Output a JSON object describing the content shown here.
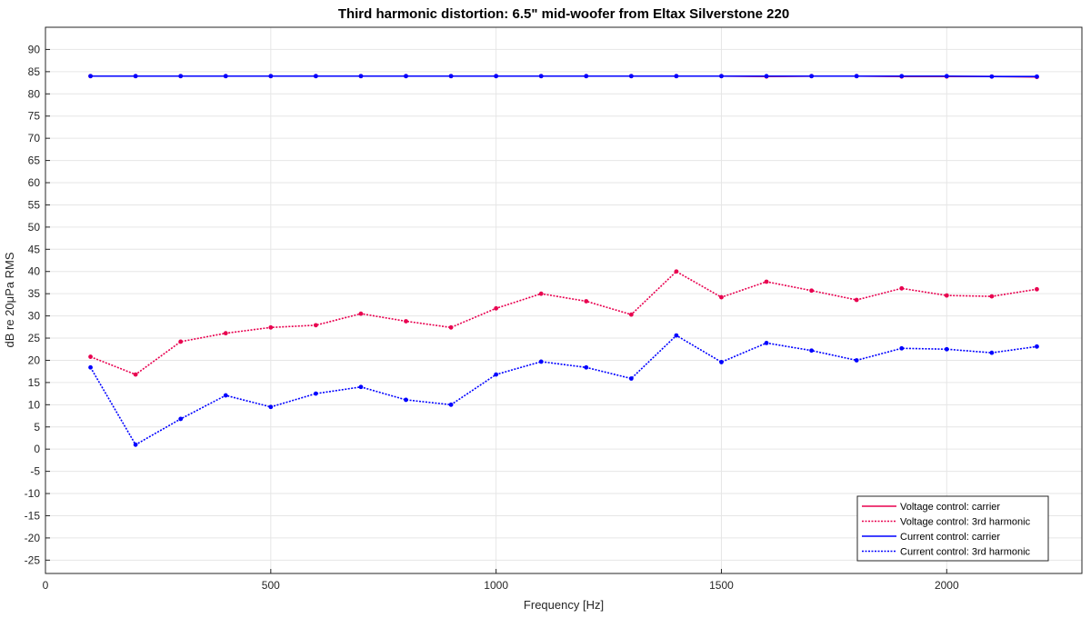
{
  "chart_data": {
    "type": "line",
    "title": "Third harmonic distortion:  6.5\" mid-woofer from Eltax Silverstone 220",
    "xlabel": "Frequency [Hz]",
    "ylabel": "dB re 20μPa RMS",
    "xlim": [
      0,
      2300
    ],
    "ylim": [
      -28,
      95
    ],
    "xticks": [
      0,
      500,
      1000,
      1500,
      2000
    ],
    "yticks": [
      -25,
      -20,
      -15,
      -10,
      -5,
      0,
      5,
      10,
      15,
      20,
      25,
      30,
      35,
      40,
      45,
      50,
      55,
      60,
      65,
      70,
      75,
      80,
      85,
      90
    ],
    "grid": true,
    "legend_position": "bottom-right",
    "x": [
      100,
      200,
      300,
      400,
      500,
      600,
      700,
      800,
      900,
      1000,
      1100,
      1200,
      1300,
      1400,
      1500,
      1600,
      1700,
      1800,
      1900,
      2000,
      2100,
      2200
    ],
    "series": [
      {
        "name": "Voltage control: carrier",
        "color": "#e8004f",
        "style": "solid",
        "values": [
          84,
          84,
          84,
          84,
          84,
          84,
          84,
          84,
          84,
          84,
          84,
          84,
          84,
          84,
          84,
          83.9,
          84,
          84,
          83.9,
          83.9,
          83.9,
          83.8
        ]
      },
      {
        "name": "Voltage control: 3rd harmonic",
        "color": "#e8004f",
        "style": "dotted",
        "values": [
          20.8,
          16.8,
          24.2,
          26.1,
          27.4,
          27.9,
          30.5,
          28.8,
          27.4,
          31.7,
          35,
          33.3,
          30.3,
          40,
          34.2,
          37.7,
          35.7,
          33.6,
          36.2,
          34.6,
          34.4,
          36
        ]
      },
      {
        "name": "Current control: carrier",
        "color": "#0000ff",
        "style": "solid",
        "values": [
          84,
          84,
          84,
          84,
          84,
          84,
          84,
          84,
          84,
          84,
          84,
          84,
          84,
          84,
          84,
          84,
          84,
          84,
          84,
          84,
          83.9,
          83.9
        ]
      },
      {
        "name": "Current control: 3rd harmonic",
        "color": "#0000ff",
        "style": "dotted",
        "values": [
          18.4,
          1,
          6.8,
          12.1,
          9.5,
          12.5,
          14,
          11.1,
          10,
          16.8,
          19.7,
          18.4,
          15.9,
          25.6,
          19.6,
          23.9,
          22.2,
          20,
          22.7,
          22.5,
          21.7,
          23.1
        ]
      }
    ]
  }
}
